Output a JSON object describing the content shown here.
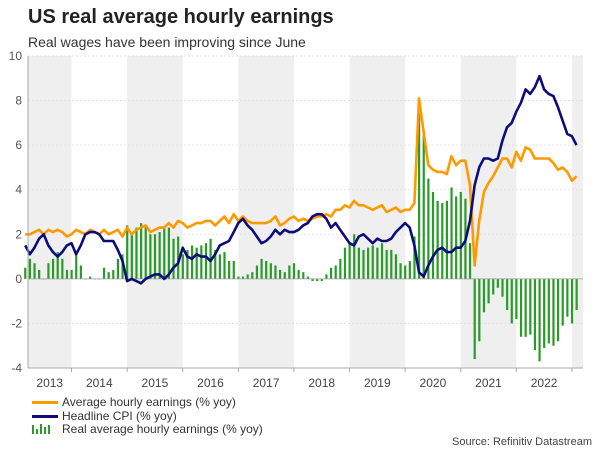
{
  "title": "US real average hourly earnings",
  "subtitle": "Real wages have been improving since June",
  "source": "Source: Refinitiv Datastream",
  "colors": {
    "ahe": "#ff9900",
    "cpi": "#0d0d7a",
    "real": "#2a9a2a",
    "band": "#efefef",
    "grid": "#dddddd"
  },
  "chart_data": {
    "type": "line",
    "title": "US real average hourly earnings",
    "ylim": [
      -4,
      10
    ],
    "y_ticks": [
      "10",
      "8",
      "6",
      "4",
      "2",
      "0",
      "-2",
      "-4"
    ],
    "y_tick_values": [
      10,
      8,
      6,
      4,
      2,
      0,
      -2,
      -4
    ],
    "x_tick_labels": [
      "2013",
      "2014",
      "2015",
      "2016",
      "2017",
      "2018",
      "2019",
      "2020",
      "2021",
      "2022"
    ],
    "x_start": "2013-03",
    "x_end": "2023-02",
    "frequency": "monthly",
    "grid": "horizontal dotted",
    "shaded_years": "alternating",
    "legend_position": "bottom-left",
    "series": [
      {
        "name": "Average hourly earnings (% yoy)",
        "type": "line",
        "color": "#ff9900",
        "values": [
          2.0,
          2.0,
          2.1,
          2.2,
          2.0,
          2.2,
          2.1,
          2.2,
          2.1,
          1.9,
          2.0,
          2.2,
          2.1,
          2.0,
          2.2,
          2.1,
          2.0,
          2.2,
          2.0,
          2.1,
          2.2,
          1.9,
          2.3,
          2.0,
          2.2,
          2.3,
          2.4,
          2.1,
          2.2,
          2.3,
          2.3,
          2.5,
          2.3,
          2.6,
          2.5,
          2.3,
          2.4,
          2.5,
          2.5,
          2.6,
          2.6,
          2.4,
          2.6,
          2.8,
          2.5,
          2.9,
          2.6,
          2.8,
          2.6,
          2.5,
          2.5,
          2.5,
          2.5,
          2.6,
          2.8,
          2.4,
          2.5,
          2.7,
          2.8,
          2.6,
          2.7,
          2.6,
          2.7,
          2.8,
          2.8,
          2.9,
          2.8,
          3.1,
          3.1,
          3.3,
          3.2,
          3.5,
          3.3,
          3.3,
          3.2,
          3.1,
          3.2,
          3.3,
          3.0,
          3.1,
          3.2,
          3.0,
          3.1,
          3.1,
          3.4,
          8.1,
          6.6,
          5.1,
          4.9,
          4.8,
          4.8,
          4.7,
          5.5,
          5.1,
          5.3,
          5.3,
          4.2,
          0.6,
          2.6,
          3.9,
          4.3,
          4.6,
          5.0,
          5.4,
          5.4,
          5.0,
          5.7,
          5.3,
          5.9,
          5.8,
          5.4,
          5.4,
          5.4,
          5.4,
          5.2,
          4.9,
          5.0,
          4.8,
          4.4,
          4.6
        ]
      },
      {
        "name": "Headline CPI (% yoy)",
        "type": "line",
        "color": "#0d0d7a",
        "values": [
          1.5,
          1.1,
          1.4,
          1.8,
          2.0,
          1.5,
          1.2,
          1.0,
          1.2,
          1.5,
          1.6,
          1.1,
          1.5,
          2.0,
          2.1,
          2.1,
          2.0,
          1.7,
          1.7,
          1.7,
          1.3,
          0.8,
          -0.1,
          0.0,
          -0.1,
          -0.2,
          0.0,
          0.1,
          0.2,
          0.2,
          0.0,
          0.2,
          0.5,
          0.7,
          1.4,
          1.0,
          0.9,
          1.1,
          1.0,
          1.0,
          0.8,
          1.1,
          1.5,
          1.6,
          1.7,
          2.1,
          2.5,
          2.7,
          2.4,
          2.2,
          1.9,
          1.6,
          1.7,
          1.9,
          2.2,
          2.0,
          2.2,
          2.1,
          2.1,
          2.2,
          2.4,
          2.5,
          2.8,
          2.9,
          2.9,
          2.7,
          2.3,
          2.5,
          2.2,
          1.9,
          1.6,
          1.5,
          1.9,
          2.0,
          1.8,
          1.6,
          1.8,
          1.7,
          1.7,
          1.8,
          2.1,
          2.3,
          2.5,
          2.3,
          1.5,
          0.3,
          0.1,
          0.6,
          1.0,
          1.3,
          1.4,
          1.2,
          1.2,
          1.4,
          1.4,
          1.7,
          2.6,
          4.2,
          5.0,
          5.4,
          5.4,
          5.3,
          5.4,
          6.2,
          6.8,
          7.0,
          7.5,
          7.9,
          8.5,
          8.3,
          8.6,
          9.1,
          8.5,
          8.3,
          8.2,
          7.7,
          7.1,
          6.5,
          6.4,
          6.0
        ]
      },
      {
        "name": "Real average hourly earnings (% yoy)",
        "type": "bar",
        "color": "#2a9a2a",
        "values": [
          0.5,
          0.9,
          0.7,
          0.4,
          0.0,
          0.7,
          0.9,
          1.2,
          0.9,
          0.4,
          0.4,
          1.1,
          0.6,
          0.0,
          0.1,
          0.0,
          0.0,
          0.5,
          0.3,
          0.4,
          0.9,
          1.1,
          2.4,
          2.0,
          2.3,
          2.5,
          2.4,
          2.0,
          2.0,
          2.1,
          2.3,
          2.3,
          1.8,
          1.9,
          1.1,
          1.3,
          1.5,
          1.4,
          1.5,
          1.6,
          1.8,
          1.3,
          1.1,
          1.2,
          0.8,
          0.8,
          0.1,
          0.1,
          0.2,
          0.3,
          0.6,
          0.9,
          0.8,
          0.7,
          0.6,
          0.4,
          0.3,
          0.6,
          0.7,
          0.4,
          0.3,
          0.1,
          -0.1,
          -0.1,
          -0.1,
          0.2,
          0.5,
          0.6,
          0.9,
          1.4,
          1.6,
          2.0,
          1.4,
          1.3,
          1.4,
          1.5,
          1.4,
          1.6,
          1.3,
          1.3,
          1.1,
          0.7,
          0.6,
          0.8,
          1.9,
          7.4,
          6.6,
          4.5,
          3.9,
          3.5,
          3.4,
          3.5,
          4.1,
          3.7,
          3.9,
          3.6,
          1.6,
          -3.6,
          -2.8,
          -1.5,
          -1.1,
          -0.7,
          -0.4,
          -0.8,
          -1.4,
          -2.0,
          -1.8,
          -2.6,
          -2.6,
          -2.5,
          -3.2,
          -3.7,
          -3.1,
          -2.9,
          -3.0,
          -2.8,
          -2.1,
          -1.7,
          -2.0,
          -1.4
        ]
      }
    ]
  },
  "legend": [
    {
      "label": "Average hourly earnings (% yoy)"
    },
    {
      "label": "Headline CPI (% yoy)"
    },
    {
      "label": "Real average hourly earnings (% yoy)"
    }
  ]
}
